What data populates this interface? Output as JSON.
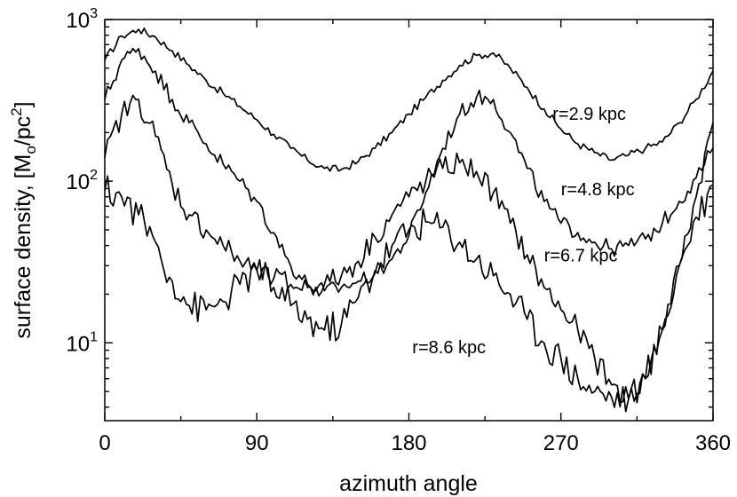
{
  "chart_data": {
    "type": "line",
    "xlabel": "azimuth angle",
    "ylabel_prefix": "surface density, [M",
    "ylabel_sub": "o",
    "ylabel_mid": "/pc",
    "ylabel_sup": "2",
    "ylabel_suffix": "]",
    "xlim": [
      0,
      360
    ],
    "ylim": [
      3.3,
      1000
    ],
    "yscale": "log",
    "grid": false,
    "x_ticks": [
      {
        "value": 0,
        "label": "0"
      },
      {
        "value": 90,
        "label": "90"
      },
      {
        "value": 180,
        "label": "180"
      },
      {
        "value": 270,
        "label": "270"
      },
      {
        "value": 360,
        "label": "360"
      }
    ],
    "y_ticks": [
      {
        "value": 10,
        "base": "10",
        "exp": "1"
      },
      {
        "value": 100,
        "base": "10",
        "exp": "2"
      },
      {
        "value": 1000,
        "base": "10",
        "exp": "3"
      }
    ],
    "series": [
      {
        "name": "r=2.9 kpc",
        "x": [
          0,
          10,
          20,
          30,
          40,
          50,
          60,
          70,
          80,
          90,
          100,
          110,
          120,
          130,
          140,
          150,
          160,
          170,
          180,
          190,
          200,
          210,
          220,
          230,
          240,
          250,
          260,
          270,
          280,
          290,
          300,
          310,
          320,
          330,
          340,
          350,
          360
        ],
        "y": [
          560,
          790,
          870,
          780,
          640,
          520,
          420,
          350,
          290,
          240,
          195,
          160,
          135,
          120,
          118,
          132,
          160,
          200,
          260,
          330,
          420,
          520,
          600,
          620,
          500,
          380,
          280,
          210,
          170,
          150,
          135,
          145,
          160,
          175,
          230,
          320,
          480
        ]
      },
      {
        "name": "r=4.8 kpc",
        "x": [
          0,
          10,
          20,
          30,
          40,
          50,
          60,
          70,
          80,
          90,
          100,
          110,
          120,
          130,
          140,
          150,
          160,
          170,
          180,
          190,
          200,
          210,
          220,
          230,
          240,
          250,
          260,
          270,
          280,
          290,
          300,
          310,
          320,
          330,
          340,
          350,
          360
        ],
        "y": [
          320,
          560,
          660,
          480,
          320,
          230,
          170,
          128,
          100,
          75,
          48,
          30,
          23,
          21,
          22,
          24,
          27,
          33,
          46,
          85,
          160,
          260,
          330,
          320,
          200,
          120,
          75,
          55,
          48,
          42,
          38,
          40,
          44,
          55,
          75,
          105,
          160
        ]
      },
      {
        "name": "r=6.7 kpc",
        "x": [
          0,
          10,
          20,
          30,
          40,
          50,
          60,
          70,
          80,
          90,
          100,
          110,
          120,
          130,
          140,
          150,
          160,
          170,
          180,
          190,
          200,
          210,
          220,
          230,
          240,
          250,
          260,
          270,
          280,
          290,
          300,
          310,
          320,
          330,
          340,
          350,
          360
        ],
        "y": [
          140,
          260,
          320,
          190,
          95,
          62,
          50,
          40,
          32,
          28,
          25,
          23,
          22,
          23,
          26,
          32,
          45,
          62,
          80,
          100,
          120,
          130,
          115,
          85,
          55,
          35,
          22,
          16,
          12,
          8,
          5.5,
          4.5,
          6,
          12,
          30,
          80,
          230
        ]
      },
      {
        "name": "r=8.6 kpc",
        "x": [
          0,
          10,
          20,
          30,
          40,
          50,
          60,
          70,
          80,
          90,
          100,
          110,
          120,
          130,
          140,
          150,
          160,
          170,
          180,
          190,
          200,
          210,
          220,
          230,
          240,
          250,
          260,
          270,
          280,
          290,
          300,
          310,
          320,
          330,
          340,
          350,
          360
        ],
        "y": [
          88,
          80,
          62,
          42,
          24,
          17,
          16,
          18,
          23,
          28,
          22,
          17,
          14,
          12,
          13,
          19,
          28,
          40,
          50,
          56,
          52,
          42,
          33,
          26,
          20,
          14,
          10,
          8,
          6,
          5,
          4.6,
          4.5,
          6,
          12,
          30,
          60,
          95
        ]
      }
    ],
    "annotations": [
      {
        "text": "r=2.9 kpc",
        "x": 265,
        "y": 240
      },
      {
        "text": "r=4.8 kpc",
        "x": 270,
        "y": 82
      },
      {
        "text": "r=6.7 kpc",
        "x": 260,
        "y": 32
      },
      {
        "text": "r=8.6 kpc",
        "x": 182,
        "y": 8.6
      }
    ]
  }
}
